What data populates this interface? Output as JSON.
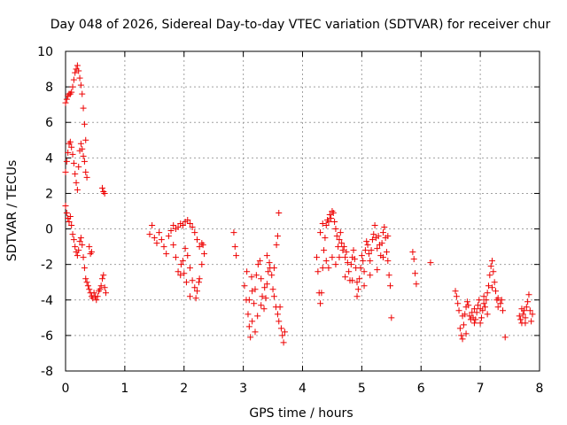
{
  "chart_data": {
    "type": "scatter",
    "title": "Day 048 of 2026, Sidereal Day-to-day VTEC variation (SDTVAR) for receiver chur",
    "xlabel": "GPS time / hours",
    "ylabel": "SDTVAR / TECUs",
    "xlim": [
      0,
      8
    ],
    "ylim": [
      -8,
      10
    ],
    "xticks": [
      0,
      1,
      2,
      3,
      4,
      5,
      6,
      7,
      8
    ],
    "yticks": [
      -8,
      -6,
      -4,
      -2,
      0,
      2,
      4,
      6,
      8,
      10
    ],
    "grid": true,
    "marker": "+",
    "series_color": "#ee0000",
    "series": [
      {
        "name": "SDTVAR",
        "points": [
          [
            0.0,
            7.1
          ],
          [
            0.02,
            7.3
          ],
          [
            0.04,
            7.5
          ],
          [
            0.06,
            7.6
          ],
          [
            0.08,
            7.6
          ],
          [
            0.1,
            7.7
          ],
          [
            0.12,
            8.0
          ],
          [
            0.14,
            8.4
          ],
          [
            0.16,
            8.8
          ],
          [
            0.18,
            9.0
          ],
          [
            0.2,
            9.2
          ],
          [
            0.22,
            8.9
          ],
          [
            0.24,
            8.5
          ],
          [
            0.26,
            8.1
          ],
          [
            0.28,
            7.6
          ],
          [
            0.3,
            6.8
          ],
          [
            0.32,
            5.9
          ],
          [
            0.34,
            5.0
          ],
          [
            0.0,
            3.2
          ],
          [
            0.02,
            3.8
          ],
          [
            0.04,
            4.3
          ],
          [
            0.06,
            4.8
          ],
          [
            0.08,
            4.9
          ],
          [
            0.1,
            4.6
          ],
          [
            0.12,
            4.2
          ],
          [
            0.14,
            3.7
          ],
          [
            0.16,
            3.1
          ],
          [
            0.18,
            2.6
          ],
          [
            0.2,
            2.2
          ],
          [
            0.22,
            3.5
          ],
          [
            0.24,
            4.4
          ],
          [
            0.26,
            4.8
          ],
          [
            0.28,
            4.5
          ],
          [
            0.3,
            4.1
          ],
          [
            0.32,
            3.8
          ],
          [
            0.34,
            3.2
          ],
          [
            0.36,
            2.9
          ],
          [
            0.0,
            1.3
          ],
          [
            0.02,
            0.9
          ],
          [
            0.04,
            0.6
          ],
          [
            0.06,
            0.4
          ],
          [
            0.08,
            0.7
          ],
          [
            0.1,
            0.2
          ],
          [
            0.12,
            -0.3
          ],
          [
            0.14,
            -0.6
          ],
          [
            0.16,
            -1.0
          ],
          [
            0.18,
            -1.3
          ],
          [
            0.2,
            -1.5
          ],
          [
            0.22,
            -1.2
          ],
          [
            0.24,
            -0.7
          ],
          [
            0.26,
            -0.5
          ],
          [
            0.28,
            -0.9
          ],
          [
            0.3,
            -1.6
          ],
          [
            0.32,
            -2.2
          ],
          [
            0.34,
            -2.8
          ],
          [
            0.36,
            -3.0
          ],
          [
            0.38,
            -3.2
          ],
          [
            0.4,
            -3.4
          ],
          [
            0.42,
            -3.6
          ],
          [
            0.44,
            -3.8
          ],
          [
            0.46,
            -3.9
          ],
          [
            0.48,
            -3.6
          ],
          [
            0.5,
            -3.8
          ],
          [
            0.52,
            -4.0
          ],
          [
            0.54,
            -3.8
          ],
          [
            0.56,
            -3.5
          ],
          [
            0.58,
            -3.4
          ],
          [
            0.6,
            -3.2
          ],
          [
            0.62,
            -2.8
          ],
          [
            0.64,
            -2.6
          ],
          [
            0.66,
            -3.3
          ],
          [
            0.68,
            -3.6
          ],
          [
            0.4,
            -1.0
          ],
          [
            0.42,
            -1.4
          ],
          [
            0.44,
            -1.3
          ],
          [
            0.62,
            2.3
          ],
          [
            0.64,
            2.1
          ],
          [
            0.66,
            2.0
          ],
          [
            1.42,
            -0.3
          ],
          [
            1.46,
            0.2
          ],
          [
            1.5,
            -0.5
          ],
          [
            1.54,
            -0.8
          ],
          [
            1.58,
            -0.2
          ],
          [
            1.62,
            -0.6
          ],
          [
            1.66,
            -1.0
          ],
          [
            1.7,
            -1.4
          ],
          [
            1.74,
            -0.4
          ],
          [
            1.78,
            -0.1
          ],
          [
            1.82,
            -0.9
          ],
          [
            1.86,
            -1.6
          ],
          [
            1.9,
            -2.4
          ],
          [
            1.94,
            -2.6
          ],
          [
            1.98,
            -1.8
          ],
          [
            2.02,
            -1.1
          ],
          [
            2.06,
            -1.5
          ],
          [
            2.1,
            -2.2
          ],
          [
            2.14,
            -2.9
          ],
          [
            2.18,
            -3.3
          ],
          [
            2.22,
            -3.5
          ],
          [
            2.26,
            -2.8
          ],
          [
            2.3,
            -2.0
          ],
          [
            2.34,
            -1.4
          ],
          [
            1.82,
            0.2
          ],
          [
            1.86,
            0.0
          ],
          [
            1.9,
            0.1
          ],
          [
            1.94,
            0.3
          ],
          [
            1.98,
            0.2
          ],
          [
            2.02,
            0.4
          ],
          [
            2.06,
            0.5
          ],
          [
            2.1,
            0.3
          ],
          [
            2.14,
            0.1
          ],
          [
            2.18,
            -0.2
          ],
          [
            2.22,
            -0.6
          ],
          [
            2.26,
            -1.0
          ],
          [
            2.3,
            -0.8
          ],
          [
            2.1,
            -3.8
          ],
          [
            2.2,
            -3.9
          ],
          [
            2.25,
            -3.0
          ],
          [
            2.32,
            -0.9
          ],
          [
            2.0,
            -2.5
          ],
          [
            2.04,
            -3.0
          ],
          [
            1.95,
            -2.0
          ],
          [
            2.84,
            -0.2
          ],
          [
            2.86,
            -1.0
          ],
          [
            2.88,
            -1.5
          ],
          [
            3.02,
            -3.2
          ],
          [
            3.05,
            -4.0
          ],
          [
            3.08,
            -4.8
          ],
          [
            3.1,
            -5.5
          ],
          [
            3.12,
            -6.1
          ],
          [
            3.15,
            -5.2
          ],
          [
            3.18,
            -4.2
          ],
          [
            3.2,
            -3.4
          ],
          [
            3.22,
            -2.6
          ],
          [
            3.25,
            -2.0
          ],
          [
            3.28,
            -1.8
          ],
          [
            3.3,
            -2.8
          ],
          [
            3.32,
            -3.8
          ],
          [
            3.35,
            -4.5
          ],
          [
            3.38,
            -3.9
          ],
          [
            3.4,
            -3.1
          ],
          [
            3.42,
            -2.4
          ],
          [
            3.45,
            -2.2
          ],
          [
            3.48,
            -2.6
          ],
          [
            3.5,
            -3.4
          ],
          [
            3.52,
            -3.8
          ],
          [
            3.55,
            -4.4
          ],
          [
            3.58,
            -4.8
          ],
          [
            3.6,
            -5.2
          ],
          [
            3.62,
            -4.4
          ],
          [
            3.64,
            -5.6
          ],
          [
            3.66,
            -6.0
          ],
          [
            3.68,
            -6.4
          ],
          [
            3.7,
            -5.8
          ],
          [
            3.1,
            -4.0
          ],
          [
            3.15,
            -3.5
          ],
          [
            3.2,
            -5.8
          ],
          [
            3.24,
            -4.9
          ],
          [
            3.3,
            -4.3
          ],
          [
            3.36,
            -3.3
          ],
          [
            3.44,
            -1.9
          ],
          [
            3.52,
            -2.2
          ],
          [
            3.56,
            -0.9
          ],
          [
            3.58,
            -0.4
          ],
          [
            3.6,
            0.9
          ],
          [
            3.4,
            -1.5
          ],
          [
            3.06,
            -2.4
          ],
          [
            3.14,
            -2.7
          ],
          [
            4.24,
            -1.6
          ],
          [
            4.26,
            -2.4
          ],
          [
            4.28,
            -3.6
          ],
          [
            4.3,
            -4.2
          ],
          [
            4.32,
            -3.6
          ],
          [
            4.34,
            -2.2
          ],
          [
            4.36,
            -1.2
          ],
          [
            4.38,
            -0.5
          ],
          [
            4.4,
            0.2
          ],
          [
            4.42,
            0.5
          ],
          [
            4.44,
            0.4
          ],
          [
            4.46,
            0.8
          ],
          [
            4.48,
            0.6
          ],
          [
            4.5,
            1.0
          ],
          [
            4.52,
            0.9
          ],
          [
            4.54,
            0.4
          ],
          [
            4.56,
            0.0
          ],
          [
            4.58,
            -0.4
          ],
          [
            4.6,
            -1.0
          ],
          [
            4.62,
            -0.6
          ],
          [
            4.64,
            -0.2
          ],
          [
            4.66,
            -0.8
          ],
          [
            4.68,
            -1.2
          ],
          [
            4.7,
            -1.0
          ],
          [
            4.72,
            -1.6
          ],
          [
            4.74,
            -1.3
          ],
          [
            4.76,
            -1.9
          ],
          [
            4.78,
            -2.4
          ],
          [
            4.8,
            -2.9
          ],
          [
            4.82,
            -2.0
          ],
          [
            4.84,
            -1.6
          ],
          [
            4.86,
            -1.2
          ],
          [
            4.88,
            -1.7
          ],
          [
            4.9,
            -2.2
          ],
          [
            4.92,
            -3.0
          ],
          [
            4.94,
            -3.4
          ],
          [
            4.96,
            -2.8
          ],
          [
            4.98,
            -2.2
          ],
          [
            5.0,
            -1.5
          ],
          [
            5.02,
            -1.8
          ],
          [
            5.04,
            -2.4
          ],
          [
            5.06,
            -1.2
          ],
          [
            5.08,
            -0.7
          ],
          [
            5.1,
            -0.9
          ],
          [
            5.12,
            -1.4
          ],
          [
            5.14,
            -1.8
          ],
          [
            5.16,
            -1.2
          ],
          [
            5.18,
            -0.6
          ],
          [
            5.2,
            -0.3
          ],
          [
            5.22,
            0.2
          ],
          [
            5.24,
            -0.5
          ],
          [
            5.26,
            -1.1
          ],
          [
            5.28,
            -0.4
          ],
          [
            5.3,
            -0.9
          ],
          [
            5.32,
            -1.5
          ],
          [
            5.34,
            -0.8
          ],
          [
            5.36,
            -0.2
          ],
          [
            5.38,
            0.1
          ],
          [
            5.4,
            -0.5
          ],
          [
            5.42,
            -1.3
          ],
          [
            5.44,
            -1.8
          ],
          [
            5.46,
            -2.6
          ],
          [
            5.48,
            -3.2
          ],
          [
            5.5,
            -5.0
          ],
          [
            4.4,
            -1.8
          ],
          [
            4.44,
            -2.2
          ],
          [
            4.5,
            -1.6
          ],
          [
            4.56,
            -2.0
          ],
          [
            4.62,
            -1.6
          ],
          [
            4.72,
            -2.7
          ],
          [
            4.84,
            -2.9
          ],
          [
            4.92,
            -3.8
          ],
          [
            5.04,
            -3.2
          ],
          [
            5.14,
            -2.6
          ],
          [
            5.26,
            -2.3
          ],
          [
            5.36,
            -1.6
          ],
          [
            5.44,
            -0.4
          ],
          [
            4.3,
            -0.2
          ],
          [
            4.34,
            0.3
          ],
          [
            5.86,
            -1.3
          ],
          [
            5.88,
            -1.7
          ],
          [
            5.9,
            -2.5
          ],
          [
            5.92,
            -3.1
          ],
          [
            6.16,
            -1.9
          ],
          [
            6.58,
            -3.5
          ],
          [
            6.6,
            -3.8
          ],
          [
            6.62,
            -4.2
          ],
          [
            6.64,
            -4.6
          ],
          [
            6.66,
            -5.6
          ],
          [
            6.68,
            -6.0
          ],
          [
            6.7,
            -6.2
          ],
          [
            6.72,
            -5.4
          ],
          [
            6.74,
            -4.8
          ],
          [
            6.76,
            -4.4
          ],
          [
            6.78,
            -4.1
          ],
          [
            6.8,
            -4.3
          ],
          [
            6.82,
            -4.9
          ],
          [
            6.84,
            -5.1
          ],
          [
            6.86,
            -4.7
          ],
          [
            6.88,
            -5.0
          ],
          [
            6.9,
            -5.3
          ],
          [
            6.92,
            -5.1
          ],
          [
            6.94,
            -4.7
          ],
          [
            6.96,
            -4.3
          ],
          [
            6.98,
            -4.0
          ],
          [
            7.0,
            -4.5
          ],
          [
            7.02,
            -5.0
          ],
          [
            7.04,
            -4.6
          ],
          [
            7.06,
            -4.2
          ],
          [
            7.08,
            -4.4
          ],
          [
            7.1,
            -4.0
          ],
          [
            7.12,
            -3.6
          ],
          [
            7.14,
            -3.2
          ],
          [
            7.16,
            -2.6
          ],
          [
            7.18,
            -2.1
          ],
          [
            7.2,
            -1.8
          ],
          [
            7.22,
            -2.4
          ],
          [
            7.24,
            -3.0
          ],
          [
            7.26,
            -3.5
          ],
          [
            7.28,
            -4.0
          ],
          [
            7.3,
            -4.4
          ],
          [
            7.34,
            -4.2
          ],
          [
            7.38,
            -4.6
          ],
          [
            7.42,
            -6.1
          ],
          [
            6.7,
            -4.9
          ],
          [
            6.76,
            -5.9
          ],
          [
            6.9,
            -4.5
          ],
          [
            7.0,
            -5.3
          ],
          [
            7.06,
            -3.8
          ],
          [
            7.12,
            -4.8
          ],
          [
            7.2,
            -3.3
          ],
          [
            7.3,
            -3.9
          ],
          [
            7.36,
            -4.0
          ],
          [
            7.66,
            -4.9
          ],
          [
            7.68,
            -5.1
          ],
          [
            7.7,
            -5.3
          ],
          [
            7.72,
            -4.8
          ],
          [
            7.74,
            -4.6
          ],
          [
            7.76,
            -5.0
          ],
          [
            7.78,
            -4.4
          ],
          [
            7.8,
            -4.1
          ],
          [
            7.82,
            -3.7
          ],
          [
            7.84,
            -4.6
          ],
          [
            7.86,
            -5.2
          ],
          [
            7.88,
            -4.8
          ],
          [
            7.7,
            -4.5
          ],
          [
            7.76,
            -5.3
          ]
        ]
      }
    ]
  }
}
